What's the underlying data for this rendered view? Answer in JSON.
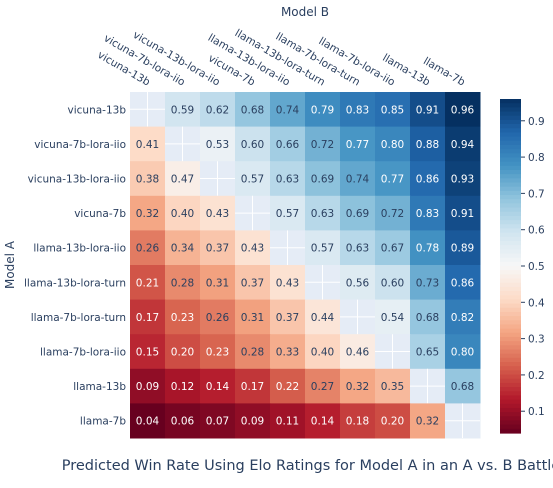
{
  "chart_data": {
    "type": "heatmap",
    "title": "Predicted Win Rate Using Elo Ratings for Model A in an A vs. B Battle",
    "xlabel": "Model B",
    "ylabel": "Model A",
    "x_categories": [
      "vicuna-13b",
      "vicuna-7b-lora-iio",
      "vicuna-13b-lora-iio",
      "vicuna-7b",
      "llama-13b-lora-iio",
      "llama-13b-lora-turn",
      "llama-7b-lora-turn",
      "llama-7b-lora-iio",
      "llama-13b",
      "llama-7b"
    ],
    "y_categories": [
      "vicuna-13b",
      "vicuna-7b-lora-iio",
      "vicuna-13b-lora-iio",
      "vicuna-7b",
      "llama-13b-lora-iio",
      "llama-13b-lora-turn",
      "llama-7b-lora-turn",
      "llama-7b-lora-iio",
      "llama-13b",
      "llama-7b"
    ],
    "values": [
      [
        null,
        0.59,
        0.62,
        0.68,
        0.74,
        0.79,
        0.83,
        0.85,
        0.91,
        0.96
      ],
      [
        0.41,
        null,
        0.53,
        0.6,
        0.66,
        0.72,
        0.77,
        0.8,
        0.88,
        0.94
      ],
      [
        0.38,
        0.47,
        null,
        0.57,
        0.63,
        0.69,
        0.74,
        0.77,
        0.86,
        0.93
      ],
      [
        0.32,
        0.4,
        0.43,
        null,
        0.57,
        0.63,
        0.69,
        0.72,
        0.83,
        0.91
      ],
      [
        0.26,
        0.34,
        0.37,
        0.43,
        null,
        0.57,
        0.63,
        0.67,
        0.78,
        0.89
      ],
      [
        0.21,
        0.28,
        0.31,
        0.37,
        0.43,
        null,
        0.56,
        0.6,
        0.73,
        0.86
      ],
      [
        0.17,
        0.23,
        0.26,
        0.31,
        0.37,
        0.44,
        null,
        0.54,
        0.68,
        0.82
      ],
      [
        0.15,
        0.2,
        0.23,
        0.28,
        0.33,
        0.4,
        0.46,
        null,
        0.65,
        0.8
      ],
      [
        0.09,
        0.12,
        0.14,
        0.17,
        0.22,
        0.27,
        0.32,
        0.35,
        null,
        0.68
      ],
      [
        0.04,
        0.06,
        0.07,
        0.09,
        0.11,
        0.14,
        0.18,
        0.2,
        0.32,
        null
      ]
    ],
    "zlim": [
      0.04,
      0.96
    ],
    "colorscale": "RdBu",
    "colorbar_ticks": [
      0.1,
      0.2,
      0.3,
      0.4,
      0.5,
      0.6,
      0.7,
      0.8,
      0.9
    ]
  }
}
